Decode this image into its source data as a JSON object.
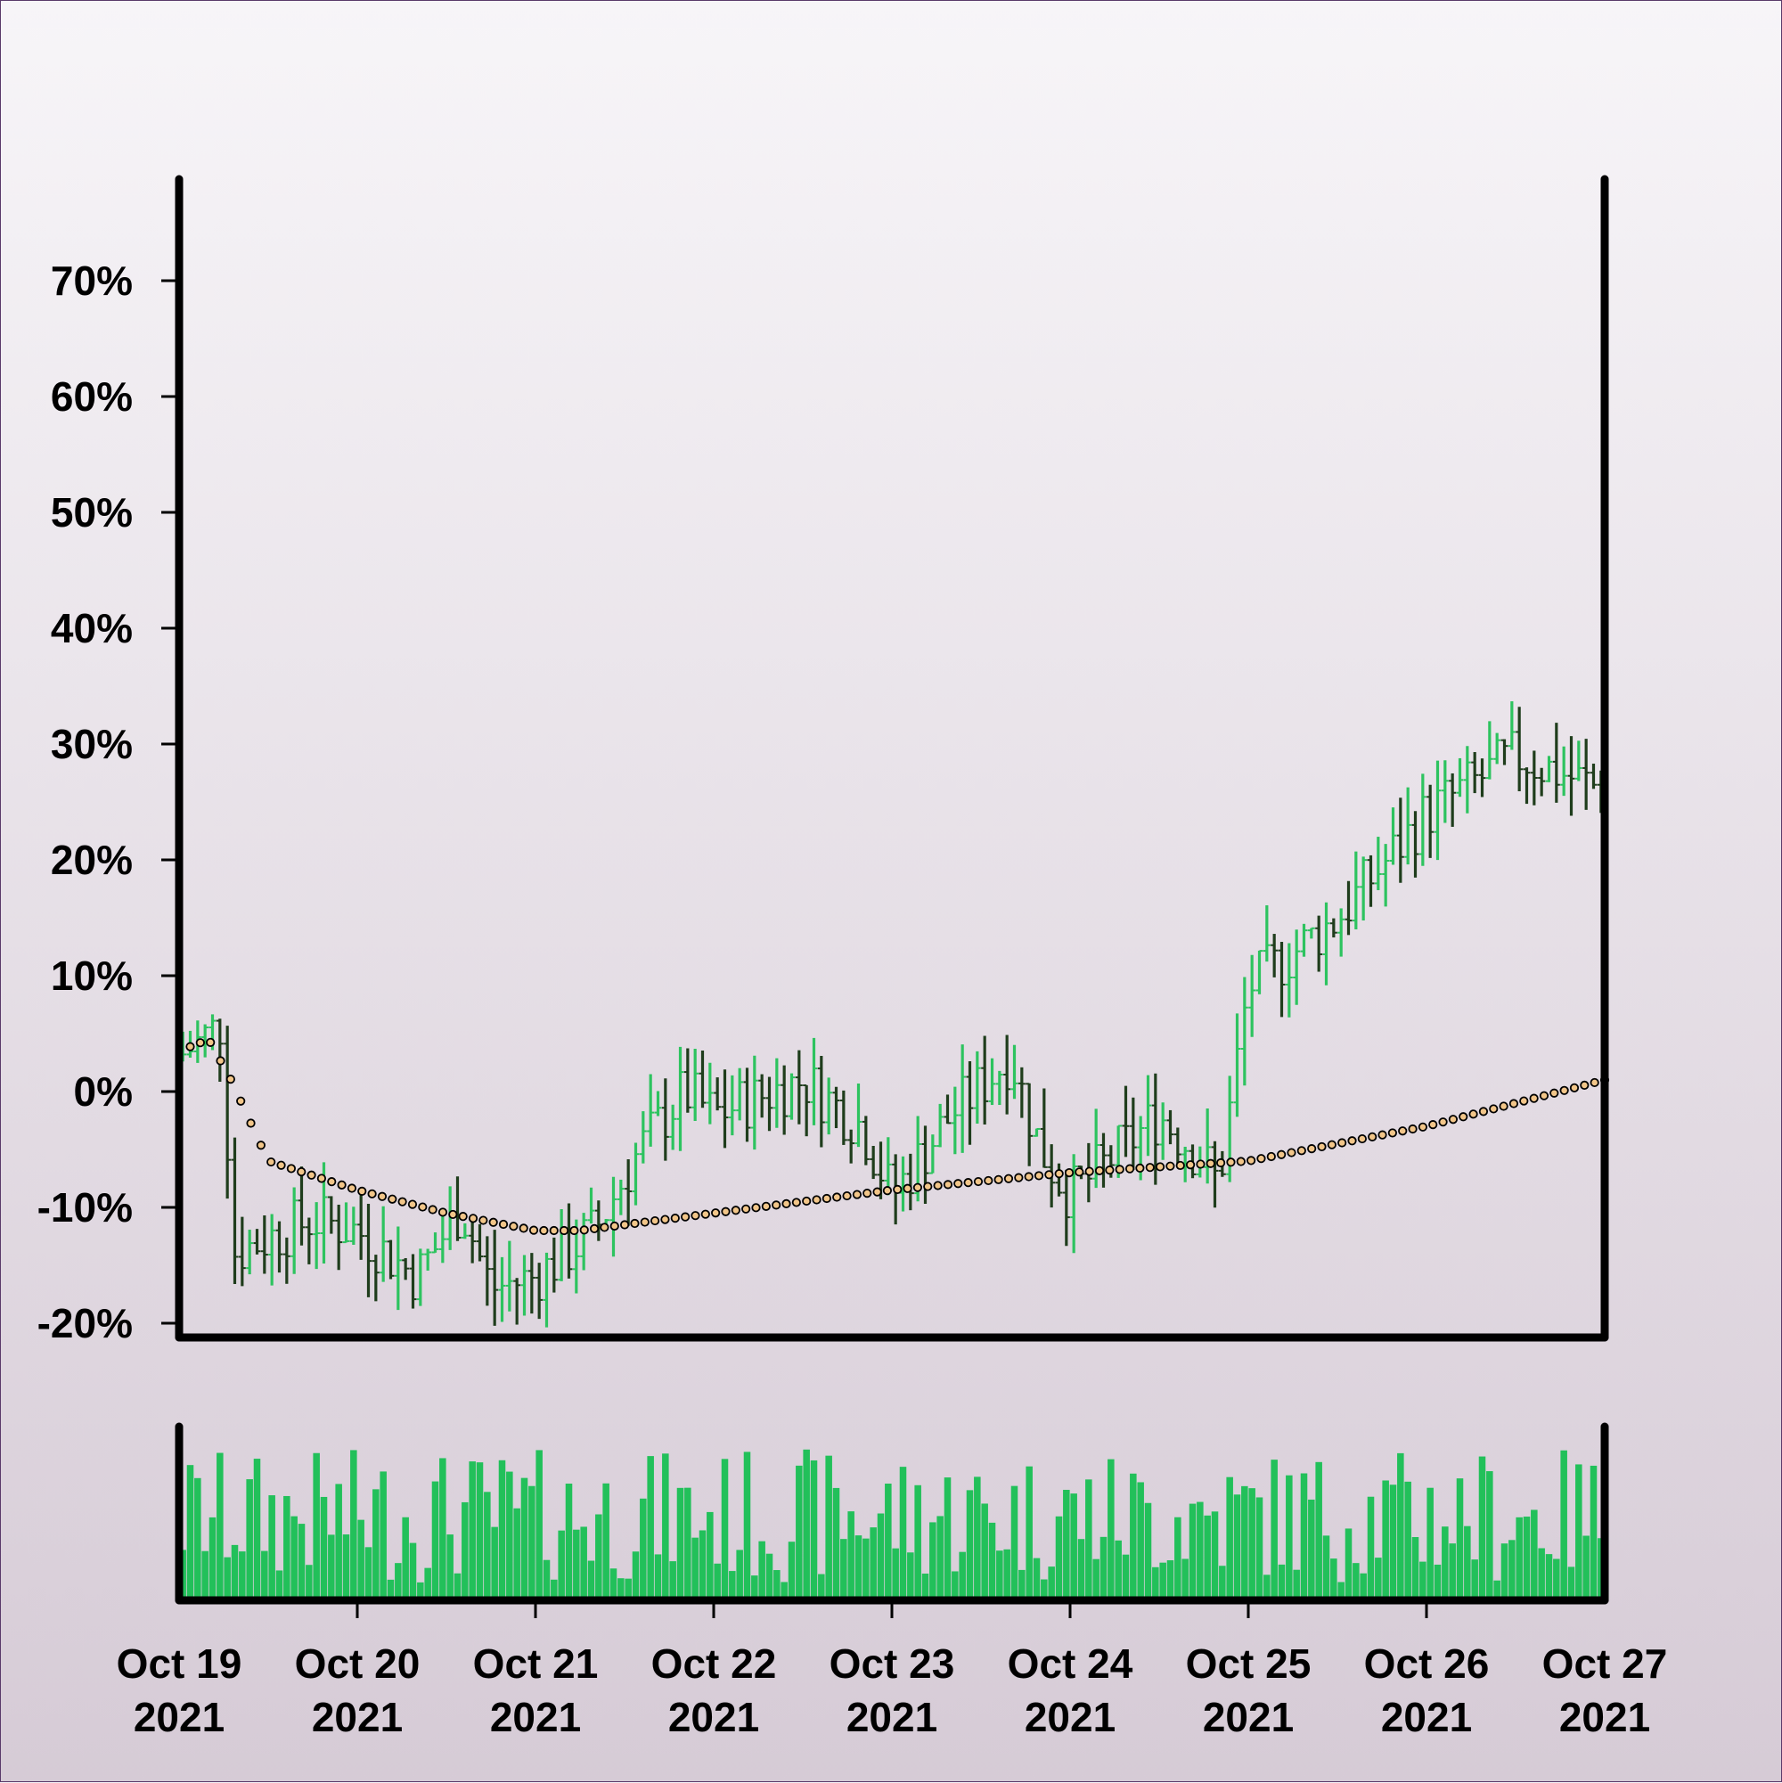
{
  "chart_data": {
    "type": "ohlc",
    "title": "",
    "xlabel": "",
    "ylabel": "",
    "y_unit": "%",
    "ylim": [
      -20,
      70
    ],
    "y_ticks": [
      "70%",
      "60%",
      "50%",
      "40%",
      "30%",
      "20%",
      "10%",
      "0%",
      "-10%",
      "-20%"
    ],
    "y_tick_values": [
      70,
      60,
      50,
      40,
      30,
      20,
      10,
      0,
      -10,
      -20
    ],
    "x_range": [
      "2021-10-19",
      "2021-10-27"
    ],
    "x_ticks": [
      {
        "date": "2021-10-19",
        "line1": "Oct 19",
        "line2": "2021"
      },
      {
        "date": "2021-10-20",
        "line1": "Oct 20",
        "line2": "2021"
      },
      {
        "date": "2021-10-21",
        "line1": "Oct 21",
        "line2": "2021"
      },
      {
        "date": "2021-10-22",
        "line1": "Oct 22",
        "line2": "2021"
      },
      {
        "date": "2021-10-23",
        "line1": "Oct 23",
        "line2": "2021"
      },
      {
        "date": "2021-10-24",
        "line1": "Oct 24",
        "line2": "2021"
      },
      {
        "date": "2021-10-25",
        "line1": "Oct 25",
        "line2": "2021"
      },
      {
        "date": "2021-10-26",
        "line1": "Oct 26",
        "line2": "2021"
      },
      {
        "date": "2021-10-27",
        "line1": "Oct 27",
        "line2": "2021"
      }
    ],
    "bars_per_day": 24,
    "close_path": [
      [
        "2021-10-19",
        3
      ],
      [
        "2021-10-19T06",
        6
      ],
      [
        "2021-10-19T07",
        -14
      ],
      [
        "2021-10-19T18",
        -11
      ],
      [
        "2021-10-20",
        -12
      ],
      [
        "2021-10-20T08",
        -16
      ],
      [
        "2021-10-20T14",
        -10
      ],
      [
        "2021-10-20T18",
        -17
      ],
      [
        "2021-10-21",
        -16
      ],
      [
        "2021-10-21T08",
        -12
      ],
      [
        "2021-10-21T14",
        -5
      ],
      [
        "2021-10-21T20",
        0
      ],
      [
        "2021-10-22",
        -2
      ],
      [
        "2021-10-22T12",
        1
      ],
      [
        "2021-10-22T20",
        -3
      ],
      [
        "2021-10-23",
        -9
      ],
      [
        "2021-10-23T08",
        -2
      ],
      [
        "2021-10-23T16",
        3
      ],
      [
        "2021-10-23T20",
        -5
      ],
      [
        "2021-10-24",
        -9
      ],
      [
        "2021-10-24T12",
        -2
      ],
      [
        "2021-10-24T18",
        -6
      ],
      [
        "2021-10-24T20",
        -8
      ],
      [
        "2021-10-25",
        9
      ],
      [
        "2021-10-25T12",
        15
      ],
      [
        "2021-10-26",
        24
      ],
      [
        "2021-10-26T12",
        29
      ],
      [
        "2021-10-27",
        26
      ]
    ],
    "moving_average": [
      [
        "2021-10-19",
        3.5
      ],
      [
        "2021-10-19T04",
        4.5
      ],
      [
        "2021-10-19T07",
        1
      ],
      [
        "2021-10-19T12",
        -6
      ],
      [
        "2021-10-20",
        -8.5
      ],
      [
        "2021-10-20T12",
        -10.5
      ],
      [
        "2021-10-21",
        -12
      ],
      [
        "2021-10-21T06",
        -12
      ],
      [
        "2021-10-22",
        -10.5
      ],
      [
        "2021-10-23",
        -8.5
      ],
      [
        "2021-10-24",
        -7
      ],
      [
        "2021-10-25",
        -6
      ],
      [
        "2021-10-26",
        -3
      ],
      [
        "2021-10-27",
        1
      ]
    ],
    "up_color": "#2dc35f",
    "down_color": "#1f3d1c",
    "volume_color": "#22c05a",
    "ma_fill": "#f2c689",
    "grid": false,
    "legend": "none"
  }
}
